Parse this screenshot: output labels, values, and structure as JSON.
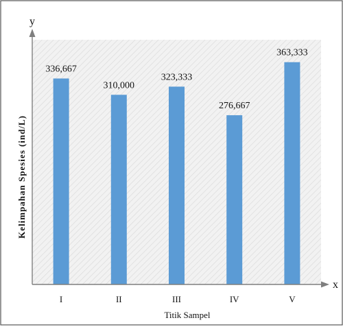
{
  "chart_data": {
    "type": "bar",
    "categories": [
      "I",
      "II",
      "III",
      "IV",
      "V"
    ],
    "values": [
      336.667,
      310.0,
      323.333,
      276.667,
      363.333
    ],
    "data_labels": [
      "336,667",
      "310,000",
      "323,333",
      "276,667",
      "363,333"
    ],
    "xlabel": "Titik Sampel",
    "ylabel": "Kelimpahan  Spesies (ind/L)",
    "x_axis_letter": "x",
    "y_axis_letter": "y",
    "ylim": [
      0,
      400
    ],
    "grid": false,
    "legend": "none"
  },
  "colors": {
    "bar": "#5b9bd5",
    "plot_background": "#f2f2f2",
    "hatch": "#dcdcdc",
    "axis": "#7f7f7f",
    "border": "#555555"
  }
}
